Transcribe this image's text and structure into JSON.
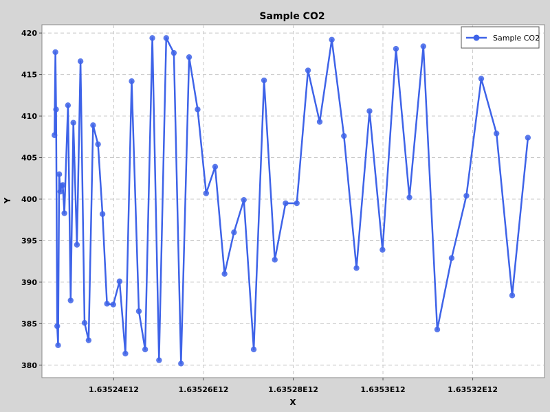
{
  "chart_data": {
    "type": "line",
    "title": "Sample CO2",
    "xlabel": "X",
    "ylabel": "Y",
    "xlim": [
      1635224000000,
      1635336000000
    ],
    "ylim": [
      378.5,
      421
    ],
    "x_ticks": [
      1635240000000,
      1635260000000,
      1635280000000,
      1635300000000,
      1635320000000
    ],
    "x_tick_labels": [
      "1.63524E12",
      "1.63526E12",
      "1.63528E12",
      "1.6353E12",
      "1.63532E12"
    ],
    "y_ticks": [
      380,
      385,
      390,
      395,
      400,
      405,
      410,
      415,
      420
    ],
    "y_tick_labels": [
      "380",
      "385",
      "390",
      "395",
      "400",
      "405",
      "410",
      "415",
      "420"
    ],
    "grid": true,
    "legend_position": "top-right",
    "colors": {
      "series": "#3e63e8",
      "plot_bg": "#ffffff",
      "grid": "#c8c8c8",
      "page_bg": "#d6d6d6"
    },
    "series": [
      {
        "name": "Sample CO2",
        "points": [
          [
            1635226800000,
            407.7
          ],
          [
            1635227000000,
            417.7
          ],
          [
            1635227150000,
            410.8
          ],
          [
            1635227400000,
            384.7
          ],
          [
            1635227600000,
            382.4
          ],
          [
            1635227850000,
            403.0
          ],
          [
            1635228100000,
            400.9
          ],
          [
            1635228300000,
            401.6
          ],
          [
            1635228650000,
            401.7
          ],
          [
            1635229000000,
            398.3
          ],
          [
            1635229800000,
            411.3
          ],
          [
            1635230400000,
            387.8
          ],
          [
            1635231000000,
            409.2
          ],
          [
            1635231800000,
            394.5
          ],
          [
            1635232600000,
            416.6
          ],
          [
            1635233500000,
            385.1
          ],
          [
            1635234400000,
            383.0
          ],
          [
            1635235400000,
            408.9
          ],
          [
            1635236500000,
            406.6
          ],
          [
            1635237500000,
            398.2
          ],
          [
            1635238500000,
            387.4
          ],
          [
            1635239900000,
            387.3
          ],
          [
            1635241300000,
            390.1
          ],
          [
            1635242600000,
            381.4
          ],
          [
            1635244000000,
            414.2
          ],
          [
            1635245600000,
            386.5
          ],
          [
            1635247000000,
            381.9
          ],
          [
            1635248600000,
            419.4
          ],
          [
            1635250100000,
            380.6
          ],
          [
            1635251700000,
            419.4
          ],
          [
            1635253400000,
            417.6
          ],
          [
            1635255000000,
            380.2
          ],
          [
            1635256800000,
            417.1
          ],
          [
            1635258700000,
            410.8
          ],
          [
            1635260600000,
            400.7
          ],
          [
            1635262600000,
            403.9
          ],
          [
            1635264700000,
            391.0
          ],
          [
            1635266800000,
            396.0
          ],
          [
            1635269000000,
            399.9
          ],
          [
            1635271200000,
            381.9
          ],
          [
            1635273500000,
            414.3
          ],
          [
            1635275900000,
            392.7
          ],
          [
            1635278300000,
            399.5
          ],
          [
            1635280800000,
            399.5
          ],
          [
            1635283300000,
            415.5
          ],
          [
            1635285900000,
            409.3
          ],
          [
            1635288600000,
            419.2
          ],
          [
            1635291300000,
            407.6
          ],
          [
            1635294100000,
            391.7
          ],
          [
            1635297000000,
            410.6
          ],
          [
            1635299900000,
            393.9
          ],
          [
            1635302900000,
            418.1
          ],
          [
            1635305900000,
            400.2
          ],
          [
            1635309000000,
            418.4
          ],
          [
            1635312100000,
            384.3
          ],
          [
            1635315300000,
            392.9
          ],
          [
            1635318600000,
            400.4
          ],
          [
            1635321900000,
            414.5
          ],
          [
            1635325300000,
            407.9
          ],
          [
            1635328800000,
            388.4
          ],
          [
            1635332300000,
            407.4
          ]
        ]
      }
    ]
  }
}
